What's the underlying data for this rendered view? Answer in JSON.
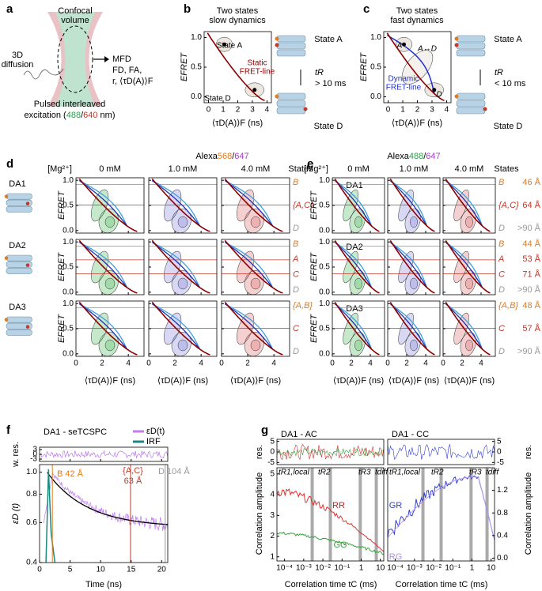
{
  "a": {
    "label": "a",
    "confocal": "Confocal",
    "volume": "volume",
    "diff1": "3D",
    "diff2": "diffusion",
    "mfd": "MFD",
    "params1": "FD, FA,",
    "params2": "r, ⟨τD(A)⟩F",
    "exc1": "Pulsed interleaved",
    "exc2": "excitation (",
    "green": "488",
    "slash": "/",
    "red": "640",
    "end": " nm)"
  },
  "b": {
    "label": "b",
    "title1": "Two states",
    "title2": "slow dynamics",
    "ylabel": "EFRET",
    "xlabel": "⟨τD(A)⟩F (ns)",
    "state_a": "State A",
    "state_d": "State D",
    "line1": "Static",
    "line2": "FRET-line",
    "tr": "tR",
    "tr_cond": "> 10 ms",
    "right_a": "State A",
    "right_d": "State D",
    "axes": {
      "x": {
        "lim": [
          -0.3,
          4.3
        ],
        "ticks": [
          0,
          1,
          2,
          3,
          4
        ]
      },
      "y": {
        "lim": [
          -0.1,
          1.1
        ],
        "ticks": [
          {
            "value": 0,
            "label": "0.0"
          },
          {
            "value": 0.5,
            "label": "0.5"
          },
          {
            "value": 1,
            "label": "1.0"
          }
        ]
      }
    }
  },
  "c": {
    "label": "c",
    "title1": "Two states",
    "title2": "fast dynamics",
    "ylabel": "EFRET",
    "xlabel": "⟨τD(A)⟩F (ns)",
    "a": "A",
    "ad": "A↔D",
    "d": "D",
    "line1": "Dynamic",
    "line2": "FRET-line",
    "tr": "tR",
    "tr_cond": "< 10 ms",
    "right_a": "State A",
    "right_d": "State D",
    "axes": {
      "x": {
        "lim": [
          -0.3,
          4.3
        ],
        "ticks": [
          0,
          1,
          2,
          3,
          4
        ]
      },
      "y": {
        "lim": [
          -0.1,
          1.1
        ],
        "ticks": [
          {
            "value": 0,
            "label": "0.0"
          },
          {
            "value": 0.5,
            "label": "0.5"
          },
          {
            "value": 1,
            "label": "1.0"
          }
        ]
      }
    }
  },
  "d": {
    "label": "d",
    "dye": [
      "Alexa",
      "568",
      "/",
      "647"
    ],
    "mg": "[Mg²⁺]",
    "conc": [
      "0 mM",
      "1.0 mM",
      "4.0 mM"
    ],
    "states": "States",
    "ylabel": "EFRET",
    "xlabel": "⟨τD(A)⟩F (ns)",
    "rows": [
      {
        "name": "DA1",
        "states": [
          "B",
          "{A,C}",
          "D"
        ]
      },
      {
        "name": "DA2",
        "states": [
          "B",
          "A",
          "C",
          "D"
        ]
      },
      {
        "name": "DA3",
        "states": [
          "{A,B}",
          "C",
          "D"
        ]
      }
    ],
    "axes": {
      "x": {
        "lim": [
          0,
          5.2
        ],
        "ticks": [
          0,
          2,
          4
        ]
      },
      "y": {
        "lim": [
          -0.05,
          1.05
        ],
        "ticks": [
          {
            "value": 0,
            "label": "0.0"
          },
          {
            "value": 0.5,
            "label": "0.5"
          },
          {
            "value": 1,
            "label": "1.0"
          }
        ]
      }
    }
  },
  "e": {
    "label": "e",
    "dye": [
      "Alexa",
      "488",
      "/",
      "647"
    ],
    "mg": "[Mg²⁺]",
    "conc": [
      "0 mM",
      "1.0 mM",
      "4.0 mM"
    ],
    "states": "States",
    "ylabel": "EFRET",
    "xlabel": "⟨τD(A)⟩F (ns)",
    "rows": [
      {
        "name": "DA1",
        "states": [
          "B",
          "{A,C}",
          "D"
        ],
        "dist": [
          "46 Å",
          "64 Å",
          ">90 Å"
        ]
      },
      {
        "name": "DA2",
        "states": [
          "B",
          "A",
          "C",
          "D"
        ],
        "dist": [
          "44 Å",
          "53 Å",
          "71 Å",
          ">90 Å"
        ]
      },
      {
        "name": "DA3",
        "states": [
          "{A,B}",
          "C",
          "D"
        ],
        "dist": [
          "48 Å",
          "57 Å",
          ">90 Å"
        ]
      }
    ],
    "axes": {
      "x": {
        "lim": [
          0,
          5.5
        ],
        "ticks": [
          0,
          2,
          4
        ]
      },
      "y": {
        "lim": [
          -0.05,
          1.05
        ],
        "ticks": [
          {
            "value": 0,
            "label": "0.0"
          },
          {
            "value": 0.5,
            "label": "0.5"
          },
          {
            "value": 1,
            "label": "1.0"
          }
        ]
      }
    }
  },
  "f": {
    "label": "f",
    "title": "DA1 - seTCSPC",
    "legend": [
      "εD(t)",
      "IRF"
    ],
    "res_label": "w. res.",
    "ylabel": "εD (t)",
    "xlabel": "Time (ns)",
    "ann_b": "B 42 Å",
    "ann_ac1": "{A,C}",
    "ann_ac2": "63 Å",
    "ann_d": "D 104 Å",
    "res_axes": {
      "x": {
        "lim": [
          0,
          21
        ],
        "ticks": [
          0,
          5,
          10,
          15,
          20
        ]
      },
      "y": {
        "lim": [
          -4.5,
          4.5
        ],
        "ticks": [
          3,
          0,
          -3
        ]
      }
    },
    "axes": {
      "x": {
        "lim": [
          0,
          21
        ],
        "ticks": [
          0,
          5,
          10,
          15,
          20
        ]
      },
      "y": {
        "lim": [
          0.4,
          1.08
        ],
        "log": true,
        "ticks": [
          0.4,
          0.6,
          0.8,
          {
            "value": 1,
            "label": "1.0"
          }
        ]
      }
    }
  },
  "g": {
    "label": "g",
    "title_ac": "DA1 - AC",
    "title_cc": "DA1 - CC",
    "res_label": "res.",
    "ylabel": "Correlation amplitude",
    "xlabel": "Correlation time tC (ms)",
    "times": [
      "tR1,local",
      "tR2",
      "tR3",
      "tdiff"
    ],
    "rr": "RR",
    "gg": "GG",
    "gr": "GR",
    "rg": "RG",
    "res_axes": {
      "x": {
        "lim": [
          4e-05,
          15
        ],
        "log": true,
        "ticks": []
      },
      "y": {
        "lim": [
          -6,
          6
        ],
        "ticks": [
          5,
          0,
          -5
        ]
      }
    },
    "axes": {
      "x": {
        "lim": [
          4e-05,
          15
        ],
        "log": true,
        "ticks": [
          {
            "value": 0.0001,
            "label": "10⁻⁴"
          },
          {
            "value": 0.001,
            "label": "10⁻³"
          },
          {
            "value": 0.01,
            "label": "10⁻²"
          },
          {
            "value": 0.1,
            "label": "10⁻¹"
          },
          {
            "value": 1,
            "label": "1"
          },
          {
            "value": 10,
            "label": "10"
          }
        ]
      },
      "y": {
        "lim": [
          0.8,
          5.3
        ],
        "ticks": [
          1,
          2,
          3,
          4,
          5
        ]
      }
    },
    "axes2": {
      "x": {
        "lim": [
          4e-05,
          15
        ],
        "log": true,
        "ticks": [
          {
            "value": 0.0001,
            "label": "10⁻⁴"
          },
          {
            "value": 0.001,
            "label": "10⁻³"
          },
          {
            "value": 0.01,
            "label": "10⁻²"
          },
          {
            "value": 0.1,
            "label": "10⁻¹"
          },
          {
            "value": 1,
            "label": "1"
          },
          {
            "value": 10,
            "label": "10"
          }
        ]
      },
      "y": {
        "lim": [
          -0.05,
          1.6
        ],
        "ticks": [
          {
            "value": 0,
            "label": "0.0"
          },
          {
            "value": 0.4,
            "label": "0.4"
          },
          {
            "value": 0.8,
            "label": "0.8"
          },
          {
            "value": 1.2,
            "label": "1.2"
          }
        ]
      }
    }
  }
}
